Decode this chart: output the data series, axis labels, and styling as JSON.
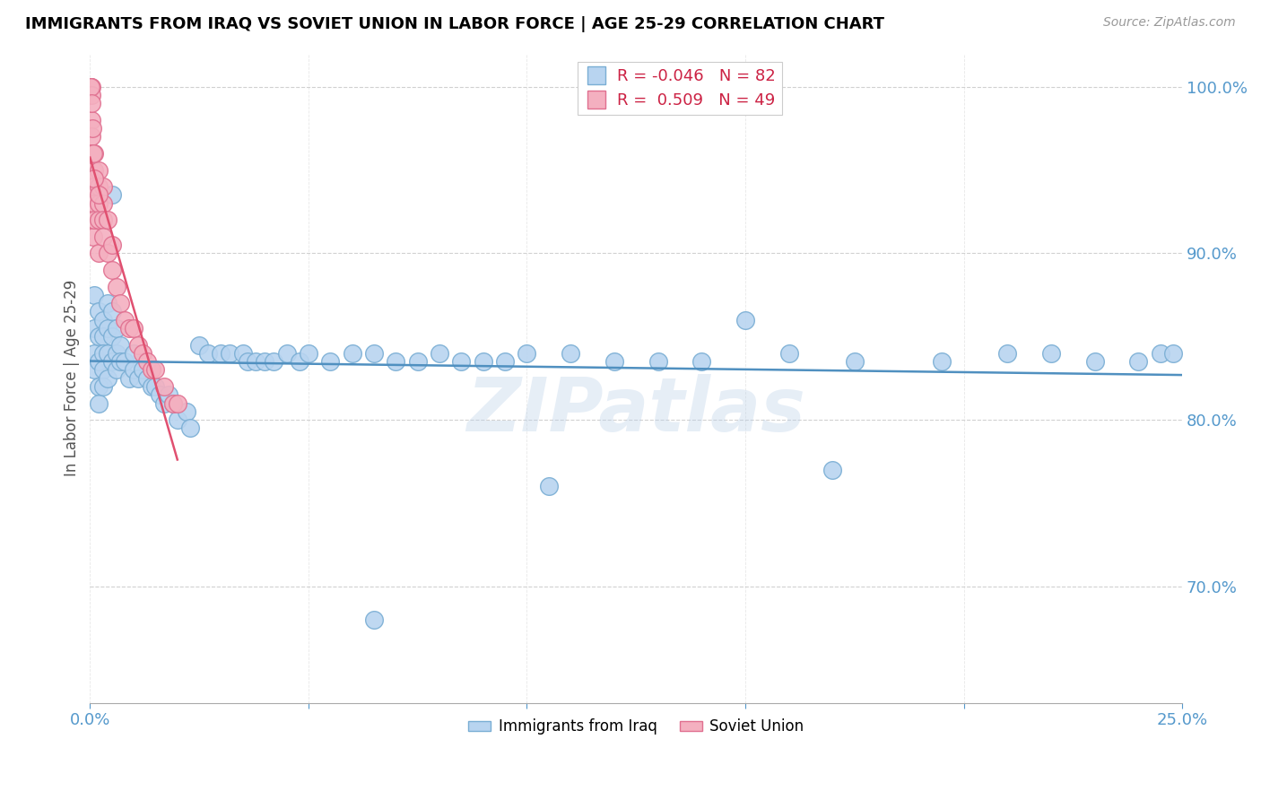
{
  "title": "IMMIGRANTS FROM IRAQ VS SOVIET UNION IN LABOR FORCE | AGE 25-29 CORRELATION CHART",
  "source": "Source: ZipAtlas.com",
  "xlabel": "",
  "ylabel": "In Labor Force | Age 25-29",
  "xlim": [
    0.0,
    0.25
  ],
  "ylim": [
    0.63,
    1.02
  ],
  "xticks": [
    0.0,
    0.05,
    0.1,
    0.15,
    0.2,
    0.25
  ],
  "xticklabels": [
    "0.0%",
    "",
    "",
    "",
    "",
    "25.0%"
  ],
  "yticks": [
    0.7,
    0.8,
    0.9,
    1.0
  ],
  "yticklabels": [
    "70.0%",
    "80.0%",
    "90.0%",
    "100.0%"
  ],
  "iraq_color": "#b8d4f0",
  "iraq_edge": "#7aaed4",
  "soviet_color": "#f4b0c0",
  "soviet_edge": "#e07090",
  "trend_iraq_color": "#5090c0",
  "trend_soviet_color": "#e05070",
  "iraq_R": -0.046,
  "iraq_N": 82,
  "soviet_R": 0.509,
  "soviet_N": 49,
  "watermark": "ZIPatlas",
  "iraq_x": [
    0.001,
    0.001,
    0.001,
    0.001,
    0.002,
    0.002,
    0.002,
    0.002,
    0.002,
    0.003,
    0.003,
    0.003,
    0.003,
    0.003,
    0.004,
    0.004,
    0.004,
    0.004,
    0.005,
    0.005,
    0.005,
    0.006,
    0.006,
    0.006,
    0.007,
    0.007,
    0.008,
    0.009,
    0.01,
    0.01,
    0.011,
    0.012,
    0.013,
    0.014,
    0.015,
    0.016,
    0.017,
    0.018,
    0.019,
    0.02,
    0.022,
    0.023,
    0.025,
    0.027,
    0.03,
    0.032,
    0.035,
    0.036,
    0.038,
    0.04,
    0.042,
    0.045,
    0.048,
    0.05,
    0.055,
    0.06,
    0.065,
    0.07,
    0.075,
    0.08,
    0.085,
    0.09,
    0.095,
    0.1,
    0.11,
    0.12,
    0.13,
    0.14,
    0.16,
    0.175,
    0.195,
    0.21,
    0.22,
    0.23,
    0.24,
    0.245,
    0.248,
    0.005,
    0.15,
    0.105,
    0.065,
    0.17
  ],
  "iraq_y": [
    0.855,
    0.875,
    0.84,
    0.83,
    0.865,
    0.85,
    0.835,
    0.82,
    0.81,
    0.86,
    0.85,
    0.84,
    0.83,
    0.82,
    0.87,
    0.855,
    0.84,
    0.825,
    0.865,
    0.85,
    0.835,
    0.855,
    0.84,
    0.83,
    0.845,
    0.835,
    0.835,
    0.825,
    0.84,
    0.83,
    0.825,
    0.83,
    0.825,
    0.82,
    0.82,
    0.815,
    0.81,
    0.815,
    0.81,
    0.8,
    0.805,
    0.795,
    0.845,
    0.84,
    0.84,
    0.84,
    0.84,
    0.835,
    0.835,
    0.835,
    0.835,
    0.84,
    0.835,
    0.84,
    0.835,
    0.84,
    0.84,
    0.835,
    0.835,
    0.84,
    0.835,
    0.835,
    0.835,
    0.84,
    0.84,
    0.835,
    0.835,
    0.835,
    0.84,
    0.835,
    0.835,
    0.84,
    0.84,
    0.835,
    0.835,
    0.84,
    0.84,
    0.935,
    0.86,
    0.76,
    0.68,
    0.77
  ],
  "soviet_x": [
    0.0002,
    0.0002,
    0.0003,
    0.0003,
    0.0004,
    0.0004,
    0.0005,
    0.0005,
    0.0006,
    0.0006,
    0.0007,
    0.0008,
    0.001,
    0.001,
    0.001,
    0.001,
    0.001,
    0.002,
    0.002,
    0.002,
    0.002,
    0.002,
    0.003,
    0.003,
    0.003,
    0.003,
    0.004,
    0.004,
    0.005,
    0.005,
    0.006,
    0.007,
    0.008,
    0.009,
    0.01,
    0.011,
    0.012,
    0.013,
    0.014,
    0.015,
    0.017,
    0.019,
    0.02,
    0.0002,
    0.0003,
    0.0005,
    0.0008,
    0.001,
    0.002
  ],
  "soviet_y": [
    1.0,
    1.0,
    1.0,
    0.995,
    0.98,
    0.97,
    0.96,
    0.95,
    0.94,
    0.93,
    0.92,
    0.91,
    0.96,
    0.95,
    0.94,
    0.93,
    0.92,
    0.95,
    0.94,
    0.93,
    0.92,
    0.9,
    0.94,
    0.93,
    0.92,
    0.91,
    0.92,
    0.9,
    0.905,
    0.89,
    0.88,
    0.87,
    0.86,
    0.855,
    0.855,
    0.845,
    0.84,
    0.835,
    0.83,
    0.83,
    0.82,
    0.81,
    0.81,
    1.0,
    0.99,
    0.975,
    0.96,
    0.945,
    0.935
  ]
}
